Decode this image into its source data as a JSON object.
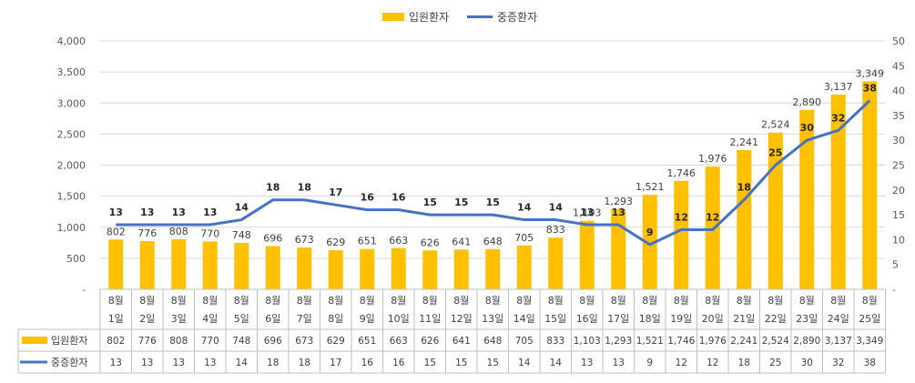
{
  "chart_data": {
    "type": "bar",
    "legend_position": "top-center",
    "categories": [
      [
        "8월",
        "1일"
      ],
      [
        "8월",
        "2일"
      ],
      [
        "8월",
        "3일"
      ],
      [
        "8월",
        "4일"
      ],
      [
        "8월",
        "5일"
      ],
      [
        "8월",
        "6일"
      ],
      [
        "8월",
        "7일"
      ],
      [
        "8월",
        "8일"
      ],
      [
        "8월",
        "9일"
      ],
      [
        "8월",
        "10일"
      ],
      [
        "8월",
        "11일"
      ],
      [
        "8월",
        "12일"
      ],
      [
        "8월",
        "13일"
      ],
      [
        "8월",
        "14일"
      ],
      [
        "8월",
        "15일"
      ],
      [
        "8월",
        "16일"
      ],
      [
        "8월",
        "17일"
      ],
      [
        "8월",
        "18일"
      ],
      [
        "8월",
        "19일"
      ],
      [
        "8월",
        "20일"
      ],
      [
        "8월",
        "21일"
      ],
      [
        "8월",
        "22일"
      ],
      [
        "8월",
        "23일"
      ],
      [
        "8월",
        "24일"
      ],
      [
        "8월",
        "25일"
      ]
    ],
    "series": [
      {
        "name": "입원환자",
        "type": "bar",
        "axis": "left",
        "color": "#FFC000",
        "values": [
          802,
          776,
          808,
          770,
          748,
          696,
          673,
          629,
          651,
          663,
          626,
          641,
          648,
          705,
          833,
          1103,
          1293,
          1521,
          1746,
          1976,
          2241,
          2524,
          2890,
          3137,
          3349
        ],
        "labels": [
          "802",
          "776",
          "808",
          "770",
          "748",
          "696",
          "673",
          "629",
          "651",
          "663",
          "626",
          "641",
          "648",
          "705",
          "833",
          "1,103",
          "1,293",
          "1,521",
          "1,746",
          "1,976",
          "2,241",
          "2,524",
          "2,890",
          "3,137",
          "3,349"
        ]
      },
      {
        "name": "중증환자",
        "type": "line",
        "axis": "right",
        "color": "#4472C4",
        "values": [
          13,
          13,
          13,
          13,
          14,
          18,
          18,
          17,
          16,
          16,
          15,
          15,
          15,
          14,
          14,
          13,
          13,
          9,
          12,
          12,
          18,
          25,
          30,
          32,
          38
        ],
        "labels": [
          "13",
          "13",
          "13",
          "13",
          "14",
          "18",
          "18",
          "17",
          "16",
          "16",
          "15",
          "15",
          "15",
          "14",
          "14",
          "13",
          "13",
          "9",
          "12",
          "12",
          "18",
          "25",
          "30",
          "32",
          "38"
        ]
      }
    ],
    "y_left": {
      "range": [
        0,
        4000
      ],
      "ticks": [
        0,
        500,
        1000,
        1500,
        2000,
        2500,
        3000,
        3500,
        4000
      ],
      "tick_labels": [
        "-",
        "500",
        "1,000",
        "1,500",
        "2,000",
        "2,500",
        "3,000",
        "3,500",
        "4,000"
      ]
    },
    "y_right": {
      "range": [
        0,
        50
      ],
      "ticks": [
        0,
        5,
        10,
        15,
        20,
        25,
        30,
        35,
        40,
        45,
        50
      ],
      "tick_labels": [
        "-",
        "5",
        "10",
        "15",
        "20",
        "25",
        "30",
        "35",
        "40",
        "45",
        "50"
      ]
    },
    "grid": true,
    "data_table": true
  }
}
